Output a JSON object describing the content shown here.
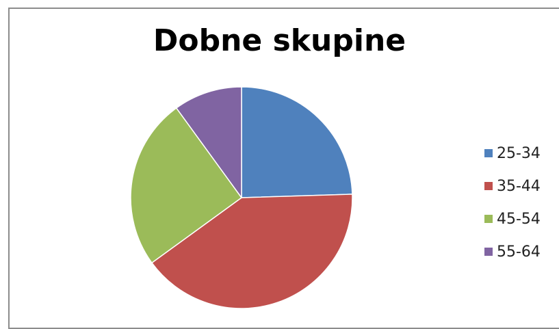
{
  "chart_data": {
    "type": "pie",
    "title": "Dobne skupine",
    "categories": [
      "25-34",
      "35-44",
      "45-54",
      "55-64"
    ],
    "values": [
      24.5,
      40.5,
      25,
      10
    ],
    "colors": [
      "#4f81bd",
      "#c0504d",
      "#9bbb59",
      "#8064a2"
    ],
    "start_angle_deg": 0,
    "direction": "clockwise",
    "legend_position": "right"
  }
}
